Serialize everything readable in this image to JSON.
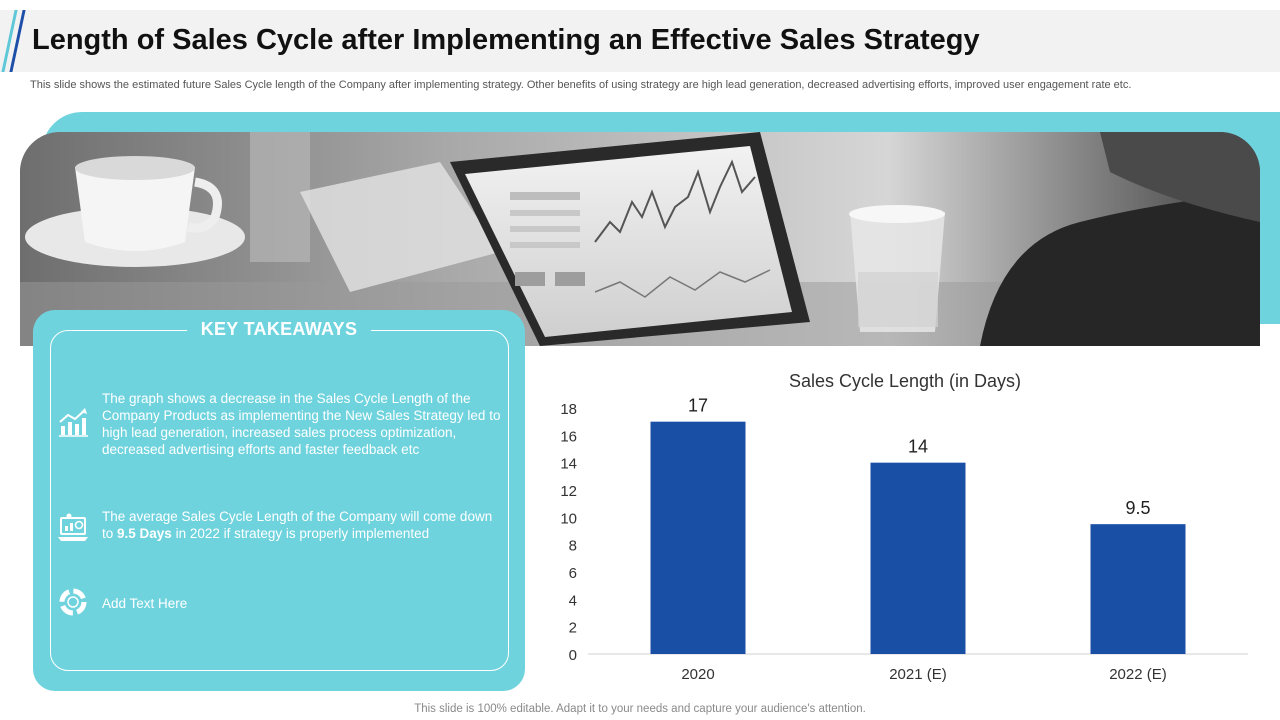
{
  "header": {
    "title": "Length of Sales Cycle after Implementing an Effective Sales Strategy",
    "subtitle": "This slide shows the estimated future Sales Cycle length of the Company after implementing strategy. Other benefits of using strategy are high lead generation, decreased advertising efforts, improved user engagement rate etc."
  },
  "colors": {
    "accent_teal": "#6fd3de",
    "bar_blue": "#1a4fa6",
    "title_stripe_dark": "#1d4fa8"
  },
  "takeaways": {
    "heading": "KEY TAKEAWAYS",
    "items": [
      {
        "icon": "growth-chart-icon",
        "text": "The graph shows a decrease in the Sales Cycle Length of the Company Products as implementing the New Sales Strategy led to high lead generation, increased sales process optimization, decreased advertising efforts and faster feedback etc"
      },
      {
        "icon": "laptop-analytics-icon",
        "text_before": "The average Sales Cycle Length of the Company will come down to ",
        "text_bold": "9.5 Days",
        "text_after": " in 2022 if strategy is properly implemented"
      },
      {
        "icon": "cycle-arrows-icon",
        "text": "Add Text Here"
      }
    ]
  },
  "chart_data": {
    "type": "bar",
    "title": "Sales Cycle Length (in Days)",
    "categories": [
      "2020",
      "2021 (E)",
      "2022 (E)"
    ],
    "values": [
      17,
      14,
      9.5
    ],
    "value_labels": [
      "17",
      "14",
      "9.5"
    ],
    "ylim": [
      0,
      18
    ],
    "yticks": [
      "0",
      "2",
      "4",
      "6",
      "8",
      "10",
      "12",
      "14",
      "16",
      "18"
    ],
    "grid": false,
    "legend": "none"
  },
  "footer": {
    "note": "This slide is 100% editable. Adapt it to your needs and capture your audience's attention."
  }
}
